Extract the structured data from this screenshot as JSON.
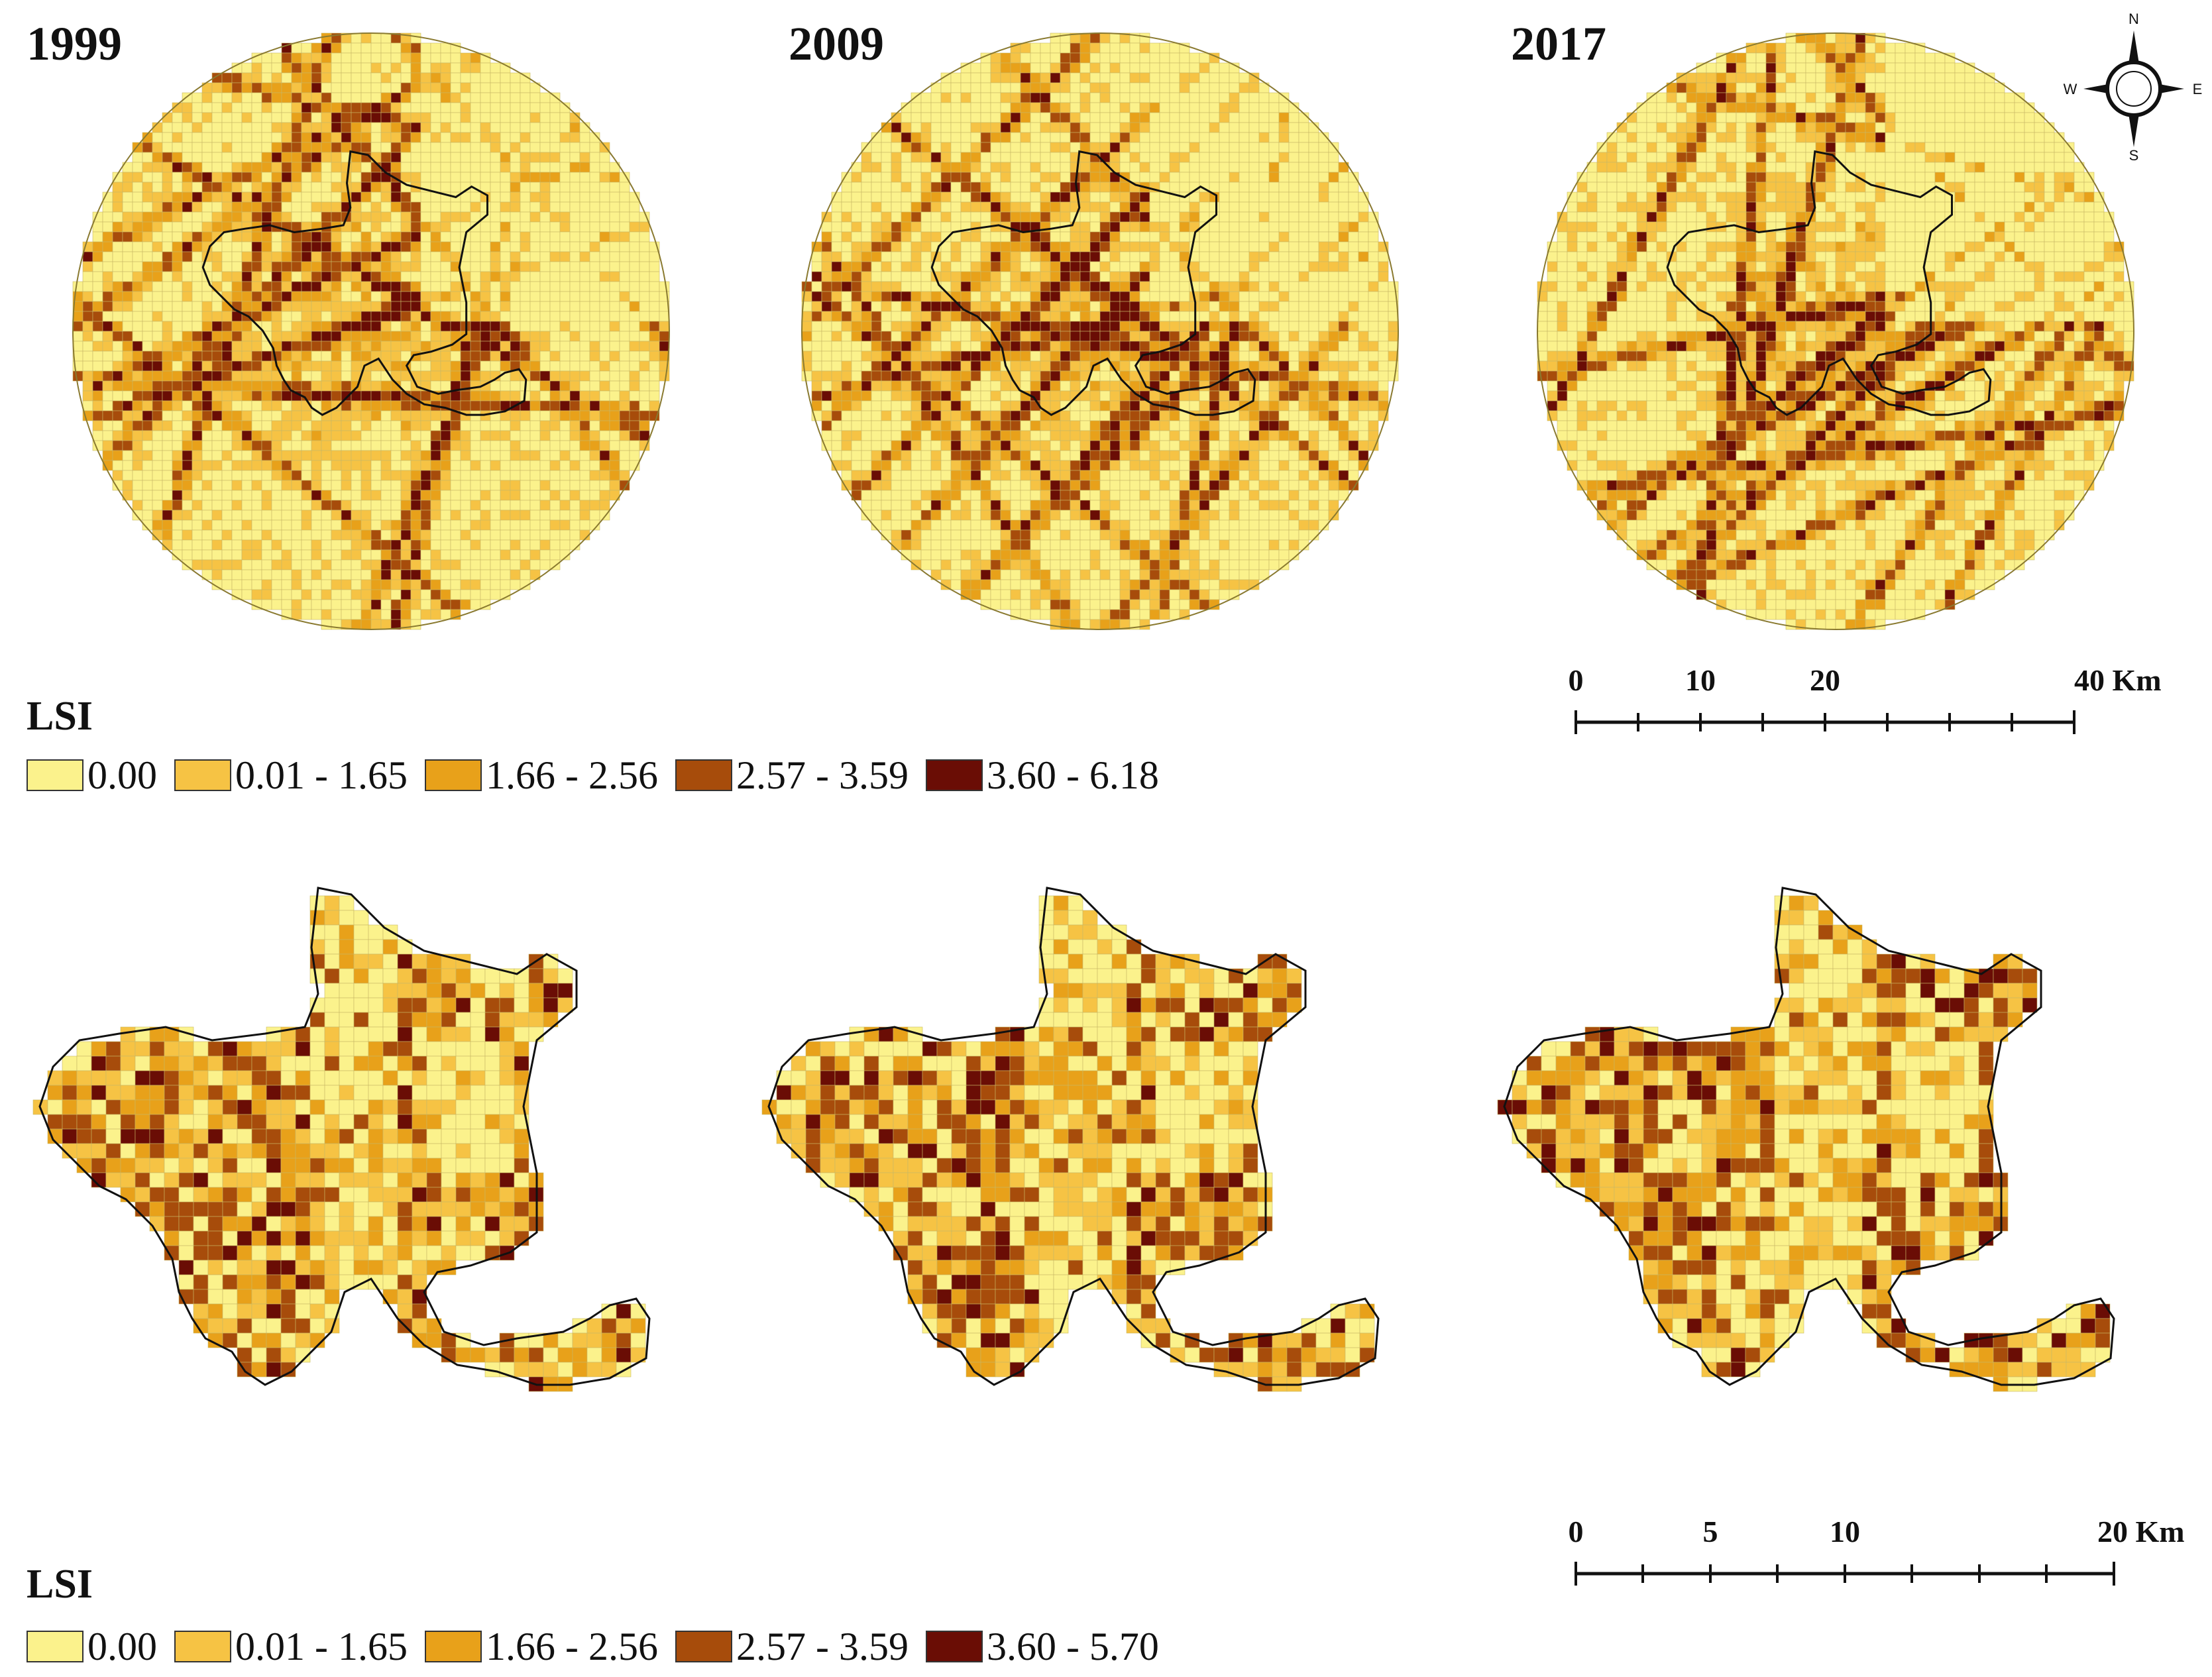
{
  "years": [
    "1999",
    "2009",
    "2017"
  ],
  "compass": {
    "north": "N",
    "south": "S",
    "east": "E",
    "west": "W"
  },
  "legend_top": {
    "title": "LSI",
    "classes": [
      {
        "label": "0.00",
        "color": "#fbf28c"
      },
      {
        "label": "0.01 - 1.65",
        "color": "#f6c344"
      },
      {
        "label": "1.66 - 2.56",
        "color": "#e8a11a"
      },
      {
        "label": "2.57 - 3.59",
        "color": "#a74c0b"
      },
      {
        "label": "3.60 - 6.18",
        "color": "#6a0d05"
      }
    ]
  },
  "legend_bottom": {
    "title": "LSI",
    "classes": [
      {
        "label": "0.00",
        "color": "#fbf28c"
      },
      {
        "label": "0.01 - 1.65",
        "color": "#f6c344"
      },
      {
        "label": "1.66 - 2.56",
        "color": "#e8a11a"
      },
      {
        "label": "2.57 - 3.59",
        "color": "#a74c0b"
      },
      {
        "label": "3.60 - 5.70",
        "color": "#6a0d05"
      }
    ]
  },
  "scale_top": {
    "labels": [
      "0",
      "10",
      "20",
      "40 Km"
    ]
  },
  "scale_bottom": {
    "labels": [
      "0",
      "5",
      "10",
      "20 Km"
    ]
  }
}
